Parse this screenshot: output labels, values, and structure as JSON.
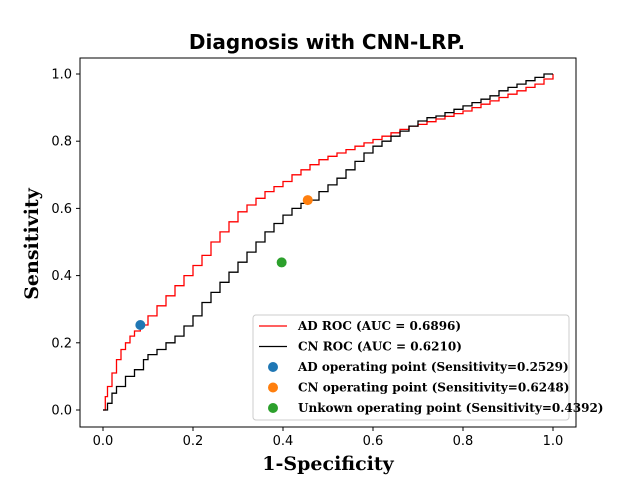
{
  "chart_data": {
    "type": "line",
    "title": "Diagnosis with CNN-LRP.",
    "xlabel": "1-Specificity",
    "ylabel": "Sensitivity",
    "xlim": [
      0.0,
      1.0
    ],
    "ylim": [
      0.0,
      1.0
    ],
    "xticks": [
      "0.0",
      "0.2",
      "0.4",
      "0.6",
      "0.8",
      "1.0"
    ],
    "yticks": [
      "0.0",
      "0.2",
      "0.4",
      "0.6",
      "0.8",
      "1.0"
    ],
    "grid": false,
    "legend_position": "lower-right",
    "series": [
      {
        "name": "AD ROC (AUC = 0.6896)",
        "kind": "line",
        "color": "#ff0000",
        "x": [
          0.0,
          0.005,
          0.01,
          0.02,
          0.03,
          0.04,
          0.05,
          0.06,
          0.07,
          0.083,
          0.1,
          0.12,
          0.14,
          0.16,
          0.18,
          0.2,
          0.22,
          0.24,
          0.26,
          0.28,
          0.3,
          0.32,
          0.34,
          0.36,
          0.38,
          0.4,
          0.42,
          0.44,
          0.46,
          0.48,
          0.5,
          0.52,
          0.54,
          0.56,
          0.58,
          0.6,
          0.62,
          0.64,
          0.66,
          0.68,
          0.7,
          0.72,
          0.74,
          0.76,
          0.78,
          0.8,
          0.82,
          0.84,
          0.86,
          0.88,
          0.9,
          0.92,
          0.94,
          0.96,
          0.98,
          1.0
        ],
        "y": [
          0.0,
          0.04,
          0.07,
          0.11,
          0.15,
          0.18,
          0.2,
          0.22,
          0.235,
          0.2529,
          0.28,
          0.31,
          0.34,
          0.37,
          0.4,
          0.43,
          0.46,
          0.5,
          0.53,
          0.56,
          0.59,
          0.61,
          0.63,
          0.65,
          0.665,
          0.68,
          0.7,
          0.715,
          0.73,
          0.745,
          0.755,
          0.765,
          0.775,
          0.785,
          0.795,
          0.805,
          0.815,
          0.825,
          0.835,
          0.845,
          0.85,
          0.858,
          0.866,
          0.874,
          0.882,
          0.89,
          0.9,
          0.91,
          0.92,
          0.93,
          0.94,
          0.95,
          0.96,
          0.97,
          0.985,
          1.0
        ]
      },
      {
        "name": "CN ROC (AUC = 0.6210)",
        "kind": "line",
        "color": "#000000",
        "x": [
          0.0,
          0.01,
          0.02,
          0.03,
          0.05,
          0.07,
          0.09,
          0.1,
          0.12,
          0.14,
          0.16,
          0.18,
          0.2,
          0.22,
          0.24,
          0.26,
          0.28,
          0.3,
          0.32,
          0.34,
          0.36,
          0.38,
          0.4,
          0.42,
          0.44,
          0.455,
          0.48,
          0.5,
          0.52,
          0.54,
          0.56,
          0.58,
          0.6,
          0.62,
          0.64,
          0.66,
          0.68,
          0.7,
          0.72,
          0.74,
          0.76,
          0.78,
          0.8,
          0.82,
          0.84,
          0.86,
          0.88,
          0.9,
          0.92,
          0.94,
          0.96,
          0.98,
          1.0
        ],
        "y": [
          0.0,
          0.02,
          0.05,
          0.07,
          0.1,
          0.12,
          0.15,
          0.165,
          0.18,
          0.2,
          0.22,
          0.25,
          0.28,
          0.32,
          0.35,
          0.38,
          0.41,
          0.44,
          0.47,
          0.5,
          0.53,
          0.555,
          0.58,
          0.6,
          0.615,
          0.6248,
          0.65,
          0.67,
          0.69,
          0.715,
          0.74,
          0.765,
          0.785,
          0.8,
          0.815,
          0.83,
          0.845,
          0.86,
          0.87,
          0.875,
          0.885,
          0.895,
          0.905,
          0.915,
          0.925,
          0.935,
          0.95,
          0.96,
          0.97,
          0.98,
          0.99,
          1.0,
          1.0
        ]
      },
      {
        "name": "AD operating point (Sensitivity=0.2529)",
        "kind": "point",
        "color": "#1f77b4",
        "x": [
          0.083
        ],
        "y": [
          0.2529
        ]
      },
      {
        "name": "CN operating point (Sensitivity=0.6248)",
        "kind": "point",
        "color": "#ff7f0e",
        "x": [
          0.455
        ],
        "y": [
          0.6248
        ]
      },
      {
        "name": "Unkown operating point (Sensitivity=0.4392)",
        "kind": "point",
        "color": "#2ca02c",
        "x": [
          0.397
        ],
        "y": [
          0.4392
        ]
      }
    ]
  }
}
